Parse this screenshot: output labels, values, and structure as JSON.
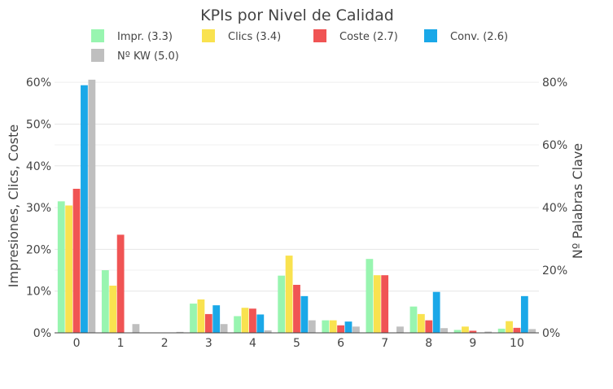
{
  "chart_data": {
    "type": "bar",
    "title": "KPIs por Nivel de Calidad",
    "categories": [
      "0",
      "1",
      "2",
      "3",
      "4",
      "5",
      "6",
      "7",
      "8",
      "9",
      "10"
    ],
    "ylabel_left": "Impresiones, Clics, Coste",
    "ylabel_right": "Nº Palabras Clave",
    "yticks_left": [
      "0%",
      "10%",
      "20%",
      "30%",
      "40%",
      "50%",
      "60%"
    ],
    "yticks_right": [
      "0%",
      "20%",
      "40%",
      "60%",
      "80%"
    ],
    "ylim_left": [
      0,
      61
    ],
    "ylim_right": [
      0,
      81.3
    ],
    "grid": true,
    "legend_position": "top",
    "series": [
      {
        "name": "Impr. (3.3)",
        "axis": "left",
        "color": "#98f5b0",
        "values": [
          31.5,
          15.0,
          0,
          7.0,
          4.0,
          13.7,
          3.0,
          17.7,
          6.3,
          0.7,
          1.0
        ]
      },
      {
        "name": "Clics (3.4)",
        "axis": "left",
        "color": "#f9e24f",
        "values": [
          30.5,
          11.3,
          0,
          8.0,
          6.0,
          18.5,
          3.0,
          13.8,
          4.5,
          1.5,
          2.8
        ]
      },
      {
        "name": "Coste (2.7)",
        "axis": "left",
        "color": "#f05454",
        "values": [
          34.5,
          23.5,
          0,
          4.5,
          5.8,
          11.5,
          1.8,
          13.8,
          3.0,
          0.5,
          1.2
        ]
      },
      {
        "name": "Conv. (2.6)",
        "axis": "left",
        "color": "#1aa8e8",
        "values": [
          59.3,
          0,
          0,
          6.6,
          4.4,
          8.8,
          2.7,
          0,
          9.8,
          0,
          8.8
        ]
      },
      {
        "name": "Nº KW (5.0)",
        "axis": "right",
        "color": "#bfbfbf",
        "values": [
          80.8,
          2.8,
          0.3,
          2.8,
          0.8,
          4.0,
          2.0,
          2.0,
          1.5,
          0.4,
          1.2
        ]
      }
    ]
  }
}
